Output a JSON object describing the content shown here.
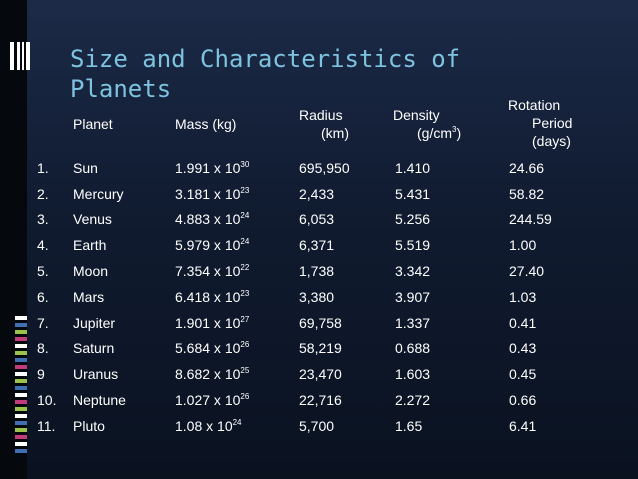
{
  "title": "Size and Characteristics of Planets",
  "headers": {
    "planet": "Planet",
    "mass": "Mass (kg)",
    "radius_1": "Radius",
    "radius_2": "(km)",
    "density_1": "Density",
    "density_2_pre": "(g/cm",
    "density_2_sup": "3",
    "density_2_post": ")",
    "rotation_1": "Rotation",
    "rotation_2": "Period",
    "rotation_3": "(days)"
  },
  "rows": [
    {
      "num": "1.",
      "planet": "Sun",
      "mass_base": "1.991 x 10",
      "mass_exp": "30",
      "radius": "695,950",
      "density": "1.410",
      "rotation": "24.66"
    },
    {
      "num": "2.",
      "planet": "Mercury",
      "mass_base": "3.181 x 10",
      "mass_exp": "23",
      "radius": "2,433",
      "density": "5.431",
      "rotation": "58.82"
    },
    {
      "num": "3.",
      "planet": "Venus",
      "mass_base": "4.883 x 10",
      "mass_exp": "24",
      "radius": "6,053",
      "density": "5.256",
      "rotation": "244.59"
    },
    {
      "num": "4.",
      "planet": "Earth",
      "mass_base": "5.979 x 10",
      "mass_exp": "24",
      "radius": "6,371",
      "density": "5.519",
      "rotation": "1.00"
    },
    {
      "num": "5.",
      "planet": "Moon",
      "mass_base": "7.354 x 10",
      "mass_exp": "22",
      "radius": "1,738",
      "density": "3.342",
      "rotation": "27.40"
    },
    {
      "num": "6.",
      "planet": "Mars",
      "mass_base": "6.418 x 10",
      "mass_exp": "23",
      "radius": "3,380",
      "density": "3.907",
      "rotation": "1.03"
    },
    {
      "num": "7.",
      "planet": "Jupiter",
      "mass_base": "1.901 x 10",
      "mass_exp": "27",
      "radius": "69,758",
      "density": "1.337",
      "rotation": "0.41"
    },
    {
      "num": "8.",
      "planet": "Saturn",
      "mass_base": "5.684 x 10",
      "mass_exp": "26",
      "radius": "58,219",
      "density": "0.688",
      "rotation": "0.43"
    },
    {
      "num": "9",
      "planet": "Uranus",
      "mass_base": "8.682 x 10",
      "mass_exp": "25",
      "radius": "23,470",
      "density": "1.603",
      "rotation": "0.45"
    },
    {
      "num": "10.",
      "planet": "Neptune",
      "mass_base": "1.027 x 10",
      "mass_exp": "26",
      "radius": "22,716",
      "density": "2.272",
      "rotation": "0.66"
    },
    {
      "num": "11.",
      "planet": "Pluto",
      "mass_base": "1.08 x 10",
      "mass_exp": "24",
      "radius": "5,700",
      "density": "1.65",
      "rotation": "6.41"
    }
  ],
  "colors": {
    "title": "#7ec3df",
    "background": "#1c2a47",
    "text": "#ffffff"
  }
}
